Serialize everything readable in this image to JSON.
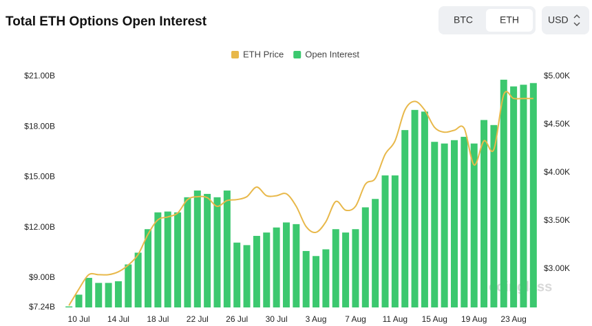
{
  "header": {
    "title": "Total ETH Options Open Interest",
    "tabs": [
      "BTC",
      "ETH"
    ],
    "selected_tab": "ETH",
    "currency": "USD"
  },
  "watermark": "coinglass",
  "chart_data": {
    "type": "bar_line",
    "categories": [
      null,
      "10 Jul",
      null,
      null,
      null,
      "14 Jul",
      null,
      null,
      null,
      "18 Jul",
      null,
      null,
      null,
      "22 Jul",
      null,
      null,
      null,
      "26 Jul",
      null,
      null,
      null,
      "30 Jul",
      null,
      null,
      null,
      "3 Aug",
      null,
      null,
      null,
      "7 Aug",
      null,
      null,
      null,
      "11 Aug",
      null,
      null,
      null,
      "15 Aug",
      null,
      null,
      null,
      "19 Aug",
      null,
      null,
      null,
      "23 Aug",
      null,
      null
    ],
    "series": [
      {
        "name": "Open Interest",
        "color": "#3cc86f",
        "type": "bar",
        "axis": "y",
        "values": [
          7.3,
          8.0,
          9.0,
          8.7,
          8.7,
          8.8,
          9.8,
          10.5,
          11.9,
          12.9,
          12.95,
          12.9,
          13.8,
          14.2,
          14.0,
          13.8,
          14.2,
          11.1,
          10.95,
          11.5,
          11.7,
          12.0,
          12.3,
          12.2,
          10.6,
          10.3,
          10.7,
          11.9,
          11.7,
          11.9,
          13.2,
          13.7,
          15.1,
          15.1,
          17.8,
          19.0,
          18.9,
          17.1,
          17.0,
          17.2,
          17.4,
          17.0,
          18.4,
          18.1,
          20.8,
          20.4,
          20.5,
          20.6
        ]
      },
      {
        "name": "ETH Price",
        "color": "#e8b84a",
        "type": "line",
        "axis": "y2",
        "values": [
          2.62,
          2.79,
          2.94,
          2.94,
          2.94,
          2.97,
          3.04,
          3.15,
          3.36,
          3.51,
          3.54,
          3.58,
          3.72,
          3.75,
          3.74,
          3.65,
          3.71,
          3.72,
          3.75,
          3.85,
          3.76,
          3.76,
          3.78,
          3.65,
          3.44,
          3.38,
          3.49,
          3.7,
          3.61,
          3.65,
          3.88,
          3.94,
          4.19,
          4.33,
          4.65,
          4.74,
          4.65,
          4.47,
          4.42,
          4.44,
          4.46,
          4.08,
          4.33,
          4.24,
          4.81,
          4.77,
          4.77,
          4.77
        ]
      }
    ],
    "ylim": [
      7.24,
      21.0
    ],
    "yticks": [
      {
        "value": 7.24,
        "label": "$7.24B"
      },
      {
        "value": 9,
        "label": "$9.00B"
      },
      {
        "value": 12,
        "label": "$12.00B"
      },
      {
        "value": 15,
        "label": "$15.00B"
      },
      {
        "value": 18,
        "label": "$18.00B"
      },
      {
        "value": 21,
        "label": "$21.00B"
      }
    ],
    "y2lim": [
      2.6,
      5.0
    ],
    "y2ticks": [
      {
        "value": 3,
        "label": "$3.00K"
      },
      {
        "value": 3.5,
        "label": "$3.50K"
      },
      {
        "value": 4,
        "label": "$4.00K"
      },
      {
        "value": 4.5,
        "label": "$4.50K"
      },
      {
        "value": 5,
        "label": "$5.00K"
      }
    ],
    "legend": "top"
  }
}
